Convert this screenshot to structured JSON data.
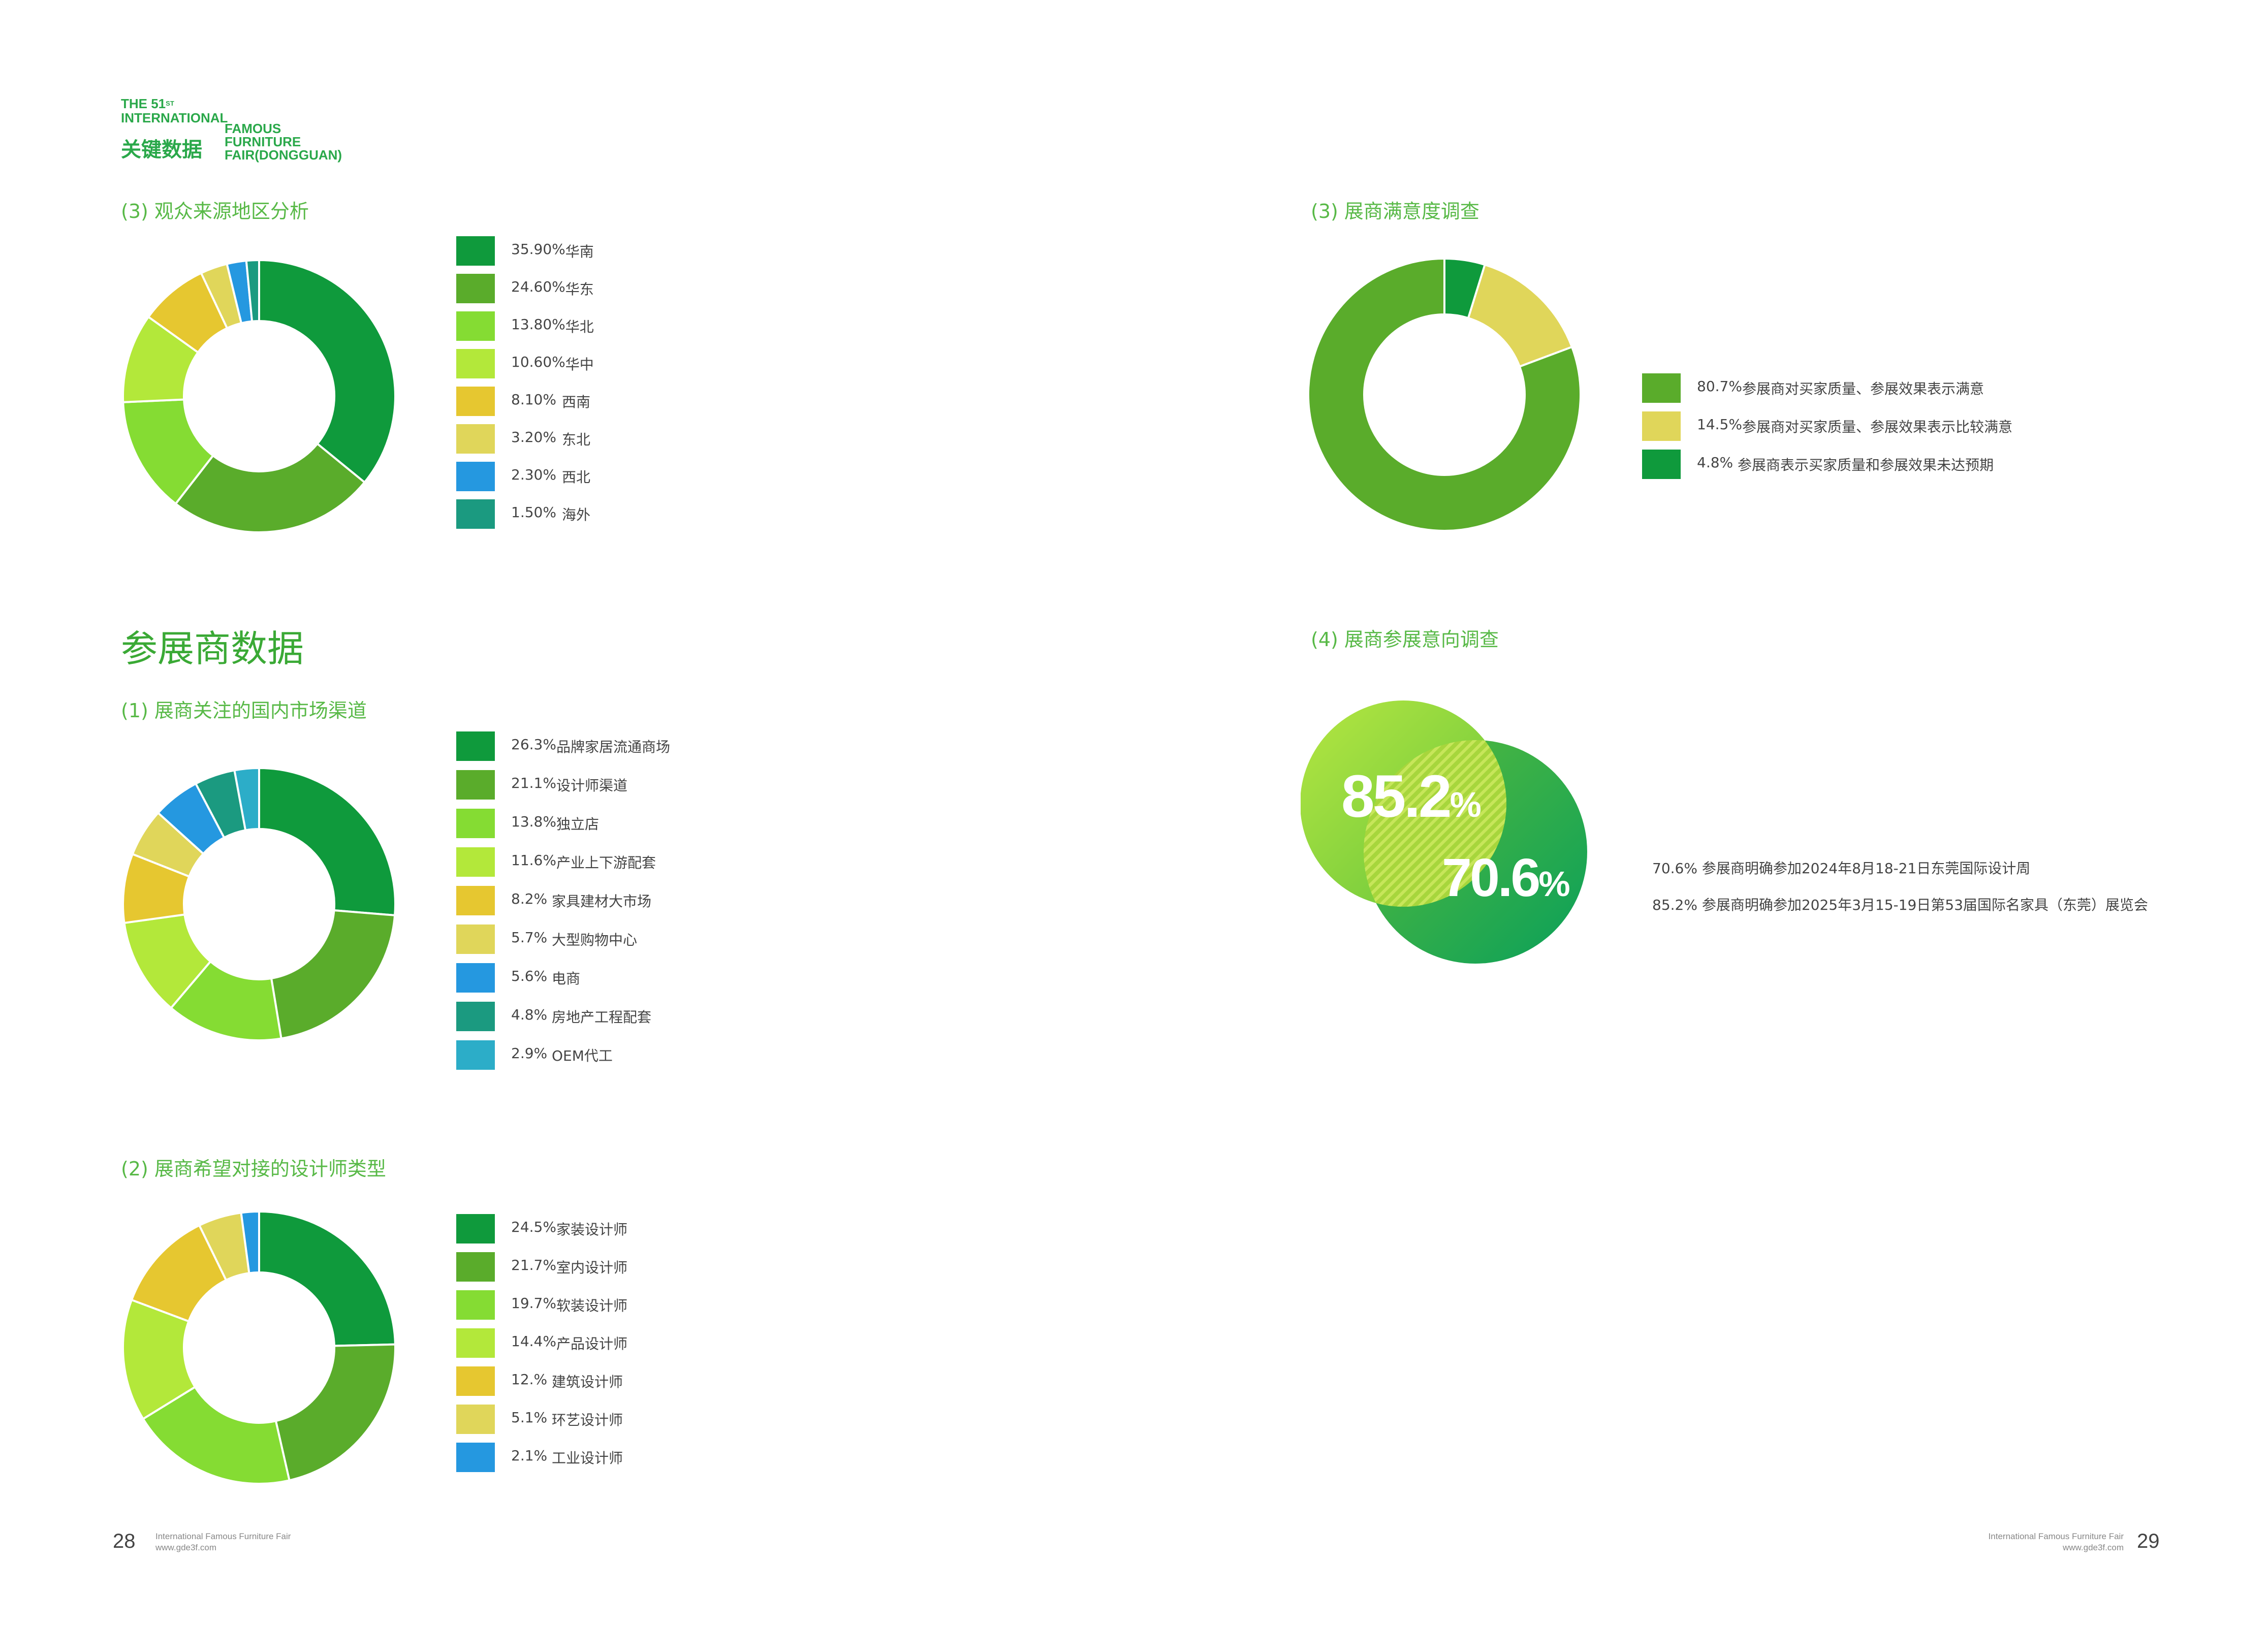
{
  "logo": {
    "line1": "THE 51",
    "sup": "ST",
    "line2": "INTERNATIONAL",
    "cn": "关键数据",
    "famous": "FAMOUS",
    "furniture": "FURNITURE",
    "fair": "FAIR(DONGGUAN)"
  },
  "sections": {
    "audience_region": "(3)  观众来源地区分析",
    "exhibitor_heading": "参展商数据",
    "market_channel": "(1)  展商关注的国内市场渠道",
    "designer_type": "(2)  展商希望对接的设计师类型",
    "satisfaction": "(3)  展商满意度调查",
    "intention": "(4)  展商参展意向调查"
  },
  "venn": {
    "big_value": "85.2",
    "small_value": "70.6",
    "pct_sign": "%",
    "notes": [
      "70.6%  参展商明确参加2024年8月18-21日东莞国际设计周",
      "85.2%  参展商明确参加2025年3月15-19日第53届国际名家具（东莞）展览会"
    ]
  },
  "footer": {
    "left_page": "28",
    "right_page": "29",
    "fair_name": "International Famous Furniture Fair",
    "website": "www.gde3f.com"
  },
  "colors": {
    "dark_green": "#0f9a3c",
    "mid_green": "#5aac2b",
    "light_green": "#85dc33",
    "lime": "#b3e83a",
    "yellow": "#e6c730",
    "pale_yellow": "#e0d65a",
    "blue": "#2598e0",
    "teal": "#1b9a80",
    "cyan": "#2cadc8"
  },
  "chart_data": [
    {
      "type": "pie",
      "title": "(3)  观众来源地区分析",
      "categories": [
        "华南",
        "华东",
        "华北",
        "华中",
        "西南",
        "东北",
        "西北",
        "海外"
      ],
      "labels": [
        "35.90%",
        "24.60%",
        "13.80%",
        "10.60%",
        "8.10%",
        "3.20%",
        "2.30%",
        "1.50%"
      ],
      "values": [
        35.9,
        24.6,
        13.8,
        10.6,
        8.1,
        3.2,
        2.3,
        1.5
      ],
      "colors": [
        "#0f9a3c",
        "#5aac2b",
        "#85dc33",
        "#b3e83a",
        "#e6c730",
        "#e0d65a",
        "#2598e0",
        "#1b9a80"
      ]
    },
    {
      "type": "pie",
      "title": "(1)  展商关注的国内市场渠道",
      "categories": [
        "品牌家居流通商场",
        "设计师渠道",
        "独立店",
        "产业上下游配套",
        "家具建材大市场",
        "大型购物中心",
        "电商",
        "房地产工程配套",
        "OEM代工"
      ],
      "labels": [
        "26.3%",
        "21.1%",
        "13.8%",
        "11.6%",
        "8.2%",
        "5.7%",
        "5.6%",
        "4.8%",
        "2.9%"
      ],
      "values": [
        26.3,
        21.1,
        13.8,
        11.6,
        8.2,
        5.7,
        5.6,
        4.8,
        2.9
      ],
      "colors": [
        "#0f9a3c",
        "#5aac2b",
        "#85dc33",
        "#b3e83a",
        "#e6c730",
        "#e0d65a",
        "#2598e0",
        "#1b9a80",
        "#2cadc8"
      ]
    },
    {
      "type": "pie",
      "title": "(2)  展商希望对接的设计师类型",
      "categories": [
        "家装设计师",
        "室内设计师",
        "软装设计师",
        "产品设计师",
        "建筑设计师",
        "环艺设计师",
        "工业设计师"
      ],
      "labels": [
        "24.5%",
        "21.7%",
        "19.7%",
        "14.4%",
        "12.%",
        "5.1%",
        "2.1%"
      ],
      "values": [
        24.5,
        21.7,
        19.7,
        14.4,
        12.0,
        5.1,
        2.1
      ],
      "colors": [
        "#0f9a3c",
        "#5aac2b",
        "#85dc33",
        "#b3e83a",
        "#e6c730",
        "#e0d65a",
        "#2598e0"
      ]
    },
    {
      "type": "pie",
      "title": "(3)  展商满意度调查",
      "categories": [
        "参展商对买家质量、参展效果表示满意",
        "参展商对买家质量、参展效果表示比较满意",
        "参展商表示买家质量和参展效果未达预期"
      ],
      "labels": [
        "80.7%",
        "14.5%",
        "4.8%"
      ],
      "values": [
        80.7,
        14.5,
        4.8
      ],
      "colors": [
        "#5aac2b",
        "#e0d65a",
        "#0f9a3c"
      ],
      "draw_order": [
        2,
        1,
        0
      ]
    }
  ]
}
